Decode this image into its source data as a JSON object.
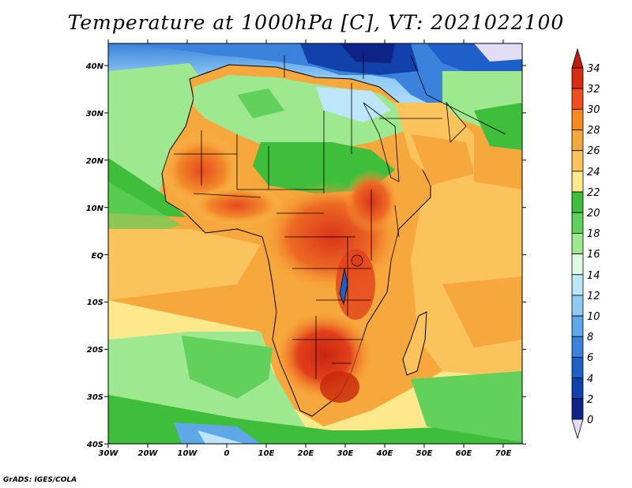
{
  "title": "Temperature at 1000hPa [C], VT: 2021022100",
  "credit": "GrADS: IGES/COLA",
  "map": {
    "lat_labels": [
      "40N",
      "30N",
      "20N",
      "10N",
      "EQ",
      "10S",
      "20S",
      "30S",
      "40S"
    ],
    "lon_labels": [
      "30W",
      "20W",
      "10W",
      "0",
      "10E",
      "20E",
      "30E",
      "40E",
      "50E",
      "60E",
      "70E"
    ],
    "lat_range": [
      -40,
      45
    ],
    "lon_range": [
      -30,
      75
    ]
  },
  "colorbar": {
    "levels": [
      "34",
      "32",
      "30",
      "28",
      "26",
      "24",
      "22",
      "20",
      "18",
      "16",
      "14",
      "12",
      "10",
      "8",
      "6",
      "4",
      "2",
      "0"
    ],
    "colors": [
      "#d62d14",
      "#ef4f1e",
      "#f6891f",
      "#f7a83c",
      "#fbc35c",
      "#fde98c",
      "#3ebe3b",
      "#62d15b",
      "#9ee98f",
      "#e0fbe3",
      "#bde6fb",
      "#8fcaf3",
      "#5ea8e8",
      "#3a82db",
      "#1f5fc9",
      "#1341ac",
      "#0e2388"
    ],
    "over_color": "#c01e0a",
    "under_color": "#e2dcf5"
  },
  "icons": {
    "colorbar_over": "triangle-up",
    "colorbar_under": "triangle-down"
  }
}
